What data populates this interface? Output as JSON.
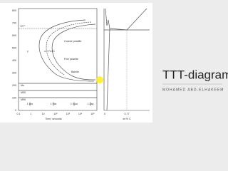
{
  "slide": {
    "title": "TTT-diagram",
    "subtitle": "MOHAMED ABD-ELHAKEEM"
  },
  "diagram": {
    "y_labels": [
      "800",
      "700",
      "600",
      "500",
      "400",
      "300",
      "200",
      "100",
      "0"
    ],
    "x_labels": [
      "0.1",
      "1",
      "10",
      "10²",
      "10³",
      "10⁴",
      "10⁵"
    ],
    "x_axis_label": "Time, seconds",
    "time_marks": [
      "1 sec",
      "1 min",
      "1 hour",
      "1 day"
    ],
    "eutectoid_label": "727°",
    "regions": [
      "Coarse pearlite",
      "Fine pearlite",
      "Bainite",
      "γ",
      "α + Fe3C"
    ],
    "martensite_labels": [
      "Ms",
      "M50",
      "M90"
    ],
    "phase": {
      "x_labels": [
        "0",
        "0.77"
      ],
      "x_axis_label": "wt % C"
    }
  }
}
